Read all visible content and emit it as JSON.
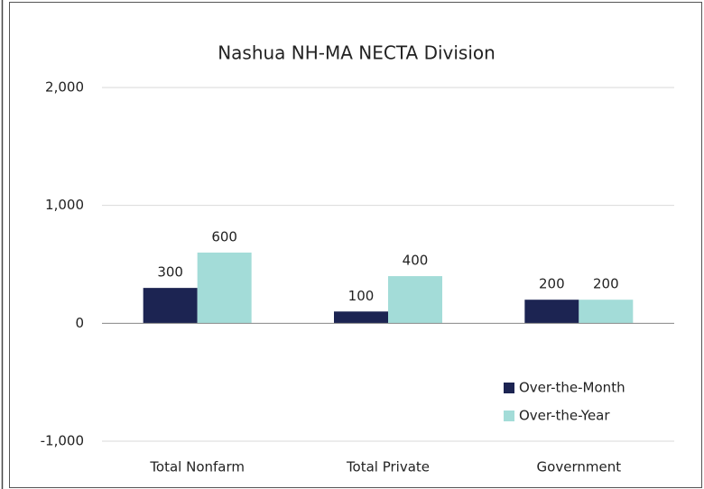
{
  "chart_data": {
    "type": "bar",
    "title": "Nashua NH-MA NECTA Division",
    "categories": [
      "Total Nonfarm",
      "Total Private",
      "Government"
    ],
    "series": [
      {
        "name": "Over-the-Month",
        "color": "#1c2452",
        "values": [
          300,
          100,
          200
        ]
      },
      {
        "name": "Over-the-Year",
        "color": "#a3dcd8",
        "values": [
          600,
          400,
          200
        ]
      }
    ],
    "ylim": [
      -1000,
      2000
    ],
    "yticks": [
      {
        "value": -1000,
        "label": "-1,000"
      },
      0,
      {
        "value": 1000,
        "label": "1,000"
      },
      {
        "value": 2000,
        "label": "2,000"
      }
    ],
    "grid": true,
    "legend": "lower right"
  }
}
